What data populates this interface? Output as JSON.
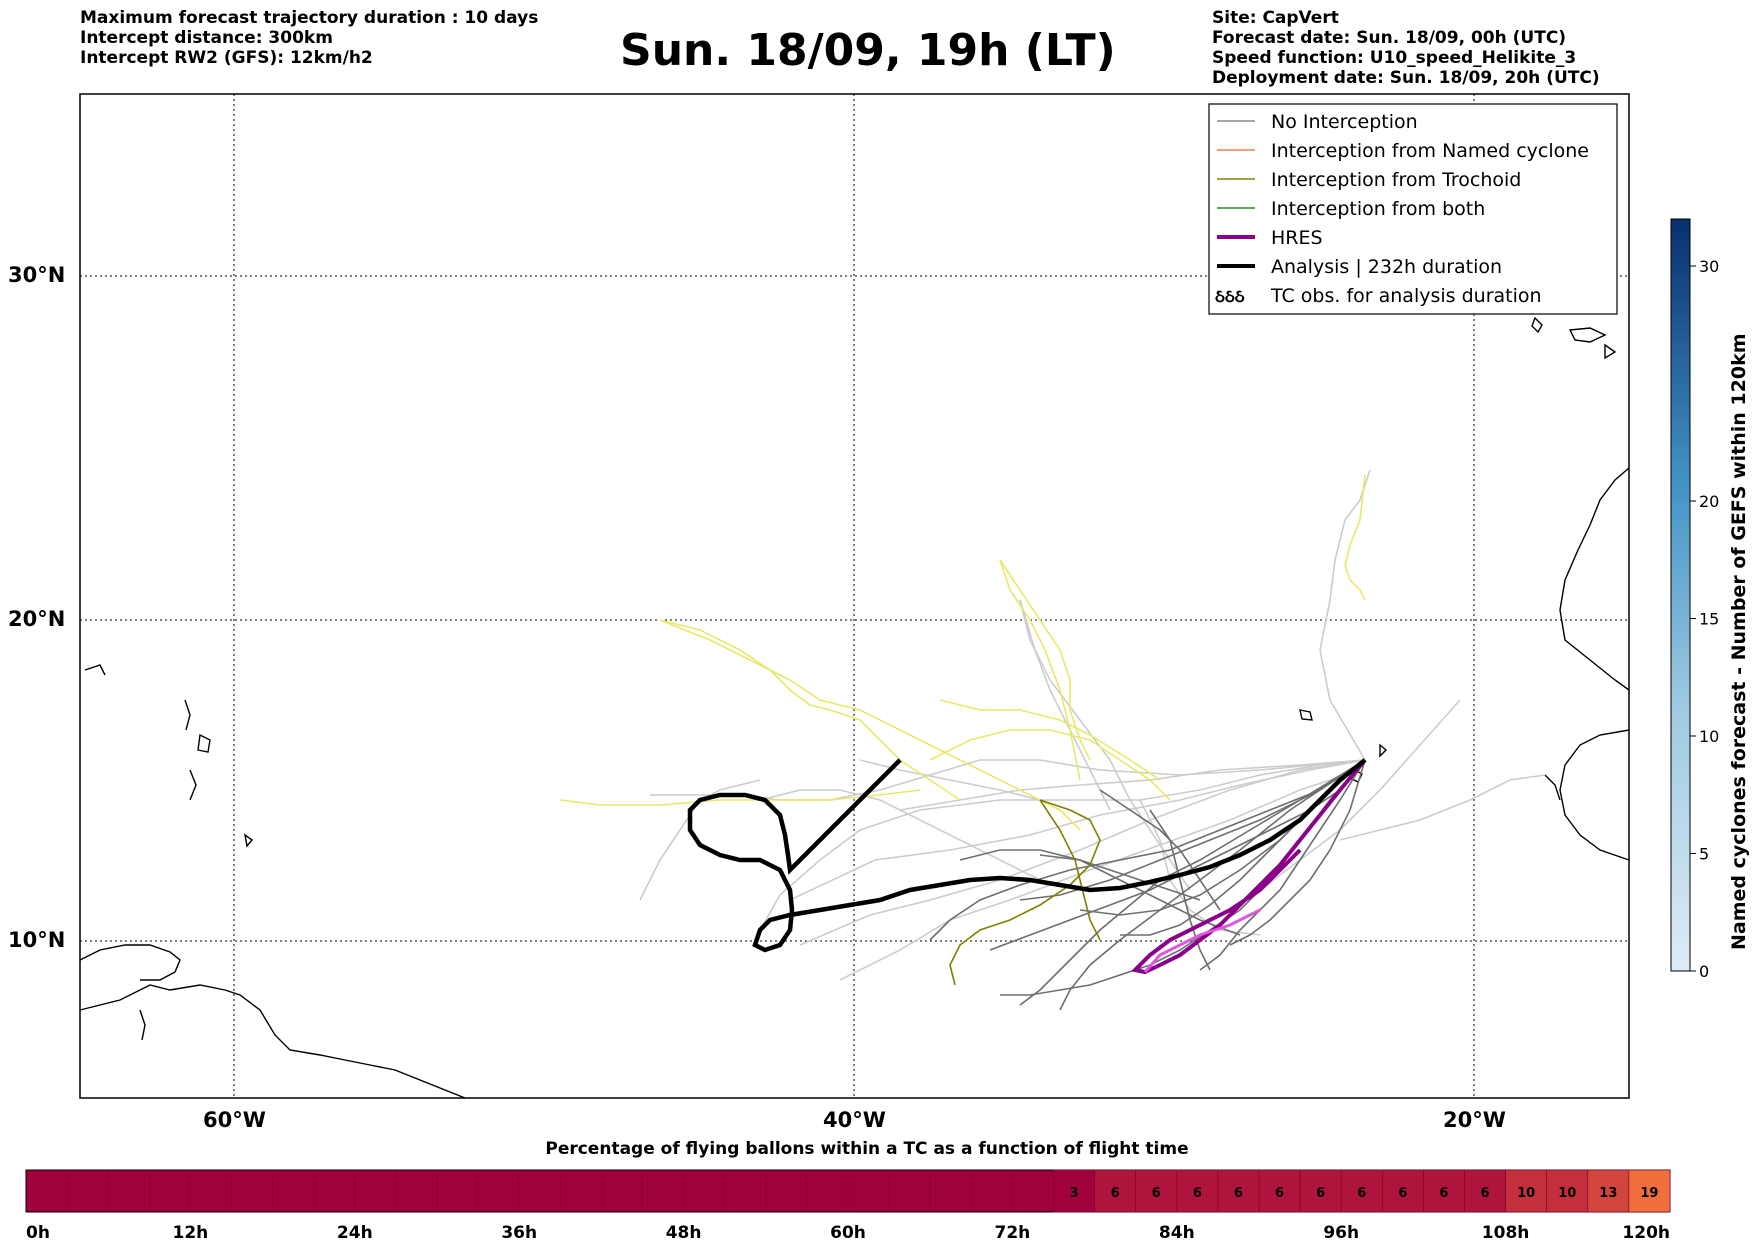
{
  "header": {
    "left": [
      "Maximum forecast trajectory duration : 10 days",
      "Intercept distance: 300km",
      "Intercept RW2 (GFS):  12km/h2"
    ],
    "title": "Sun. 18/09, 19h (LT)",
    "right": [
      "Site: CapVert",
      "Forecast date: Sun. 18/09, 00h (UTC)",
      "Speed function: U10_speed_Helikite_3",
      "Deployment date: Sun. 18/09, 20h (UTC)"
    ]
  },
  "map": {
    "lat_labels": [
      "30°N",
      "20°N",
      "10°N"
    ],
    "lon_labels": [
      "60°W",
      "40°W",
      "20°W"
    ],
    "lon_range": [
      -65,
      -15
    ],
    "lat_range": [
      5.5,
      35.5
    ],
    "grid": "dotted"
  },
  "legend": {
    "placement": "top-right",
    "items": [
      {
        "label": "No Interception",
        "color": "#888888",
        "style": "thin"
      },
      {
        "label": "Interception from Named cyclone",
        "color": "#ff7f50",
        "style": "thin"
      },
      {
        "label": "Interception from Trochoid",
        "color": "#808000",
        "style": "thin"
      },
      {
        "label": "Interception from both",
        "color": "#228b22",
        "style": "thin"
      },
      {
        "label": "HRES",
        "color": "#8b008b",
        "style": "thick"
      },
      {
        "label": "Analysis | 232h duration",
        "color": "#000000",
        "style": "thick"
      },
      {
        "label": "TC obs. for analysis duration",
        "color": "#000000",
        "style": "cyclone-symbols"
      }
    ]
  },
  "colorbar": {
    "title": "Named cyclones forecast - Number of GEFS within 120km",
    "ticks": [
      "0",
      "5",
      "10",
      "15",
      "20",
      "30"
    ],
    "tick_values": [
      0,
      5,
      10,
      15,
      20,
      30
    ],
    "max": 32,
    "colors": {
      "low": "#deebf7",
      "high": "#08306b"
    }
  },
  "time_bar": {
    "caption": "Percentage of flying ballons within a TC as a function of flight time",
    "ticks": [
      "0h",
      "12h",
      "24h",
      "36h",
      "48h",
      "60h",
      "72h",
      "84h",
      "96h",
      "108h",
      "120h"
    ],
    "hours_total": 120,
    "base_color": "#a0003c",
    "cells": [
      {
        "from_h": 75,
        "to_h": 78,
        "value": "3"
      },
      {
        "from_h": 78,
        "to_h": 81,
        "value": "6"
      },
      {
        "from_h": 81,
        "to_h": 84,
        "value": "6"
      },
      {
        "from_h": 84,
        "to_h": 87,
        "value": "6"
      },
      {
        "from_h": 87,
        "to_h": 90,
        "value": "6"
      },
      {
        "from_h": 90,
        "to_h": 93,
        "value": "6"
      },
      {
        "from_h": 93,
        "to_h": 96,
        "value": "6"
      },
      {
        "from_h": 96,
        "to_h": 99,
        "value": "6"
      },
      {
        "from_h": 99,
        "to_h": 102,
        "value": "6"
      },
      {
        "from_h": 102,
        "to_h": 105,
        "value": "6"
      },
      {
        "from_h": 105,
        "to_h": 108,
        "value": "6"
      },
      {
        "from_h": 108,
        "to_h": 111,
        "value": "10"
      },
      {
        "from_h": 111,
        "to_h": 114,
        "value": "10"
      },
      {
        "from_h": 114,
        "to_h": 117,
        "value": "13"
      },
      {
        "from_h": 117,
        "to_h": 120,
        "value": "19"
      }
    ]
  }
}
